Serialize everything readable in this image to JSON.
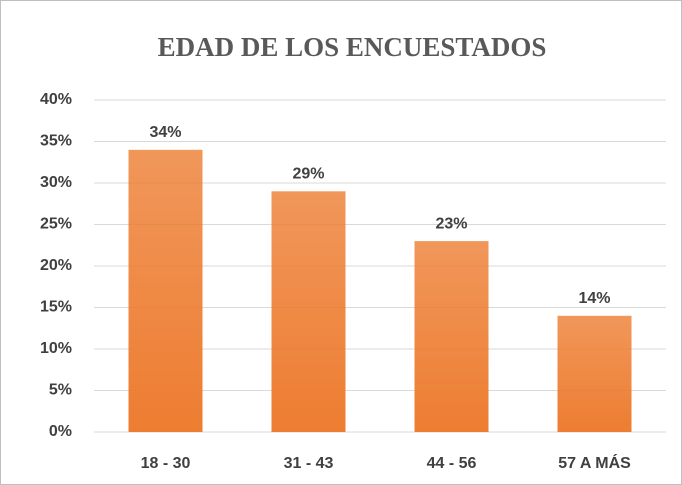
{
  "chart_data": {
    "type": "bar",
    "title": "EDAD DE LOS ENCUESTADOS",
    "categories": [
      "18 - 30",
      "31 - 43",
      "44 - 56",
      "57 A MÁS"
    ],
    "values": [
      34,
      29,
      23,
      14
    ],
    "value_labels": [
      "34%",
      "29%",
      "23%",
      "14%"
    ],
    "color": "#ed7d31",
    "ylim": [
      0,
      40
    ],
    "yticks": [
      {
        "value": 0,
        "label": "0%"
      },
      {
        "value": 5,
        "label": "5%"
      },
      {
        "value": 10,
        "label": "10%"
      },
      {
        "value": 15,
        "label": "15%"
      },
      {
        "value": 20,
        "label": "20%"
      },
      {
        "value": 25,
        "label": "25%"
      },
      {
        "value": 30,
        "label": "30%"
      },
      {
        "value": 35,
        "label": "35%"
      },
      {
        "value": 40,
        "label": "40%"
      }
    ],
    "grid": true
  }
}
